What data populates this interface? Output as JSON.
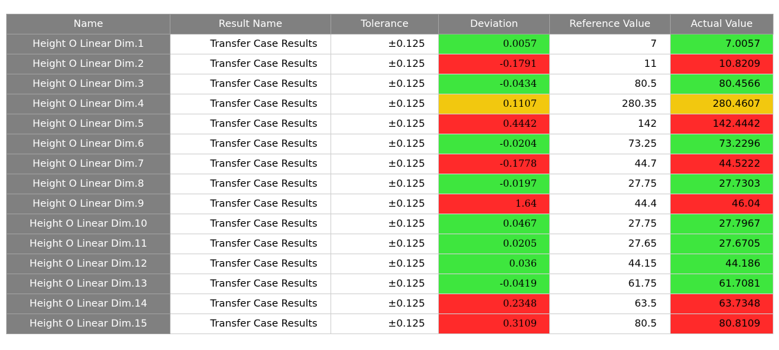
{
  "table": {
    "columns": [
      "Name",
      "Result Name",
      "Tolerance",
      "Deviation",
      "Reference Value",
      "Actual Value"
    ],
    "status_colors": {
      "pass": "#3ee63e",
      "fail": "#ff2a2a",
      "warn": "#f2c80f",
      "header": "#808080"
    },
    "rows": [
      {
        "name": "Height O Linear Dim.1",
        "result_name": "Transfer Case Results",
        "tolerance": "±0.125",
        "deviation": "0.0057",
        "reference": "7",
        "actual": "7.0057",
        "status": "pass"
      },
      {
        "name": "Height O Linear Dim.2",
        "result_name": "Transfer Case Results",
        "tolerance": "±0.125",
        "deviation": "-0.1791",
        "reference": "11",
        "actual": "10.8209",
        "status": "fail"
      },
      {
        "name": "Height O Linear Dim.3",
        "result_name": "Transfer Case Results",
        "tolerance": "±0.125",
        "deviation": "-0.0434",
        "reference": "80.5",
        "actual": "80.4566",
        "status": "pass"
      },
      {
        "name": "Height O Linear Dim.4",
        "result_name": "Transfer Case Results",
        "tolerance": "±0.125",
        "deviation": "0.1107",
        "reference": "280.35",
        "actual": "280.4607",
        "status": "warn"
      },
      {
        "name": "Height O Linear Dim.5",
        "result_name": "Transfer Case Results",
        "tolerance": "±0.125",
        "deviation": "0.4442",
        "reference": "142",
        "actual": "142.4442",
        "status": "fail"
      },
      {
        "name": "Height O Linear Dim.6",
        "result_name": "Transfer Case Results",
        "tolerance": "±0.125",
        "deviation": "-0.0204",
        "reference": "73.25",
        "actual": "73.2296",
        "status": "pass"
      },
      {
        "name": "Height O Linear Dim.7",
        "result_name": "Transfer Case Results",
        "tolerance": "±0.125",
        "deviation": "-0.1778",
        "reference": "44.7",
        "actual": "44.5222",
        "status": "fail"
      },
      {
        "name": "Height O Linear Dim.8",
        "result_name": "Transfer Case Results",
        "tolerance": "±0.125",
        "deviation": "-0.0197",
        "reference": "27.75",
        "actual": "27.7303",
        "status": "pass"
      },
      {
        "name": "Height O Linear Dim.9",
        "result_name": "Transfer Case Results",
        "tolerance": "±0.125",
        "deviation": "1.64",
        "reference": "44.4",
        "actual": "46.04",
        "status": "fail"
      },
      {
        "name": "Height O Linear Dim.10",
        "result_name": "Transfer Case Results",
        "tolerance": "±0.125",
        "deviation": "0.0467",
        "reference": "27.75",
        "actual": "27.7967",
        "status": "pass"
      },
      {
        "name": "Height O Linear Dim.11",
        "result_name": "Transfer Case Results",
        "tolerance": "±0.125",
        "deviation": "0.0205",
        "reference": "27.65",
        "actual": "27.6705",
        "status": "pass"
      },
      {
        "name": "Height O Linear Dim.12",
        "result_name": "Transfer Case Results",
        "tolerance": "±0.125",
        "deviation": "0.036",
        "reference": "44.15",
        "actual": "44.186",
        "status": "pass"
      },
      {
        "name": "Height O Linear Dim.13",
        "result_name": "Transfer Case Results",
        "tolerance": "±0.125",
        "deviation": "-0.0419",
        "reference": "61.75",
        "actual": "61.7081",
        "status": "pass"
      },
      {
        "name": "Height O Linear Dim.14",
        "result_name": "Transfer Case Results",
        "tolerance": "±0.125",
        "deviation": "0.2348",
        "reference": "63.5",
        "actual": "63.7348",
        "status": "fail"
      },
      {
        "name": "Height O Linear Dim.15",
        "result_name": "Transfer Case Results",
        "tolerance": "±0.125",
        "deviation": "0.3109",
        "reference": "80.5",
        "actual": "80.8109",
        "status": "fail"
      }
    ]
  }
}
